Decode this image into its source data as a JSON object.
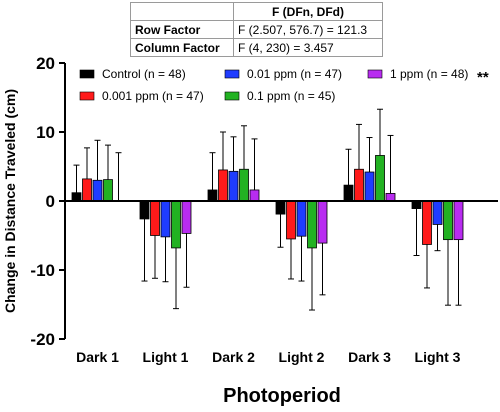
{
  "stats_table": {
    "header": [
      "",
      "F (DFn, DFd)"
    ],
    "rows": [
      {
        "label": "Row Factor",
        "value": "F (2.507, 576.7) = 121.3"
      },
      {
        "label": "Column Factor",
        "value": "F (4, 230) = 3.457"
      }
    ]
  },
  "chart_data": {
    "type": "bar",
    "xlabel": "Photoperiod",
    "ylabel": "Change in Distance Traveled (cm)",
    "ylim": [
      -20,
      20
    ],
    "yticks": [
      -20,
      -10,
      0,
      10,
      20
    ],
    "categories": [
      "Dark 1",
      "Light 1",
      "Dark 2",
      "Light 2",
      "Dark 3",
      "Light 3"
    ],
    "significance": "**",
    "legend_position": "top",
    "series": [
      {
        "name": "Control (n = 48)",
        "color": "#000000",
        "values": [
          1.2,
          -2.6,
          1.6,
          -1.9,
          2.3,
          -1.1
        ],
        "errors": [
          4.0,
          9.0,
          5.4,
          4.8,
          5.2,
          6.8
        ]
      },
      {
        "name": "0.001 ppm (n = 47)",
        "color": "#ff1a1a",
        "values": [
          3.2,
          -5.0,
          4.5,
          -5.5,
          4.6,
          -6.3
        ],
        "errors": [
          4.5,
          6.2,
          5.5,
          5.8,
          6.5,
          6.3
        ]
      },
      {
        "name": "0.01 ppm (n = 47)",
        "color": "#1f3cff",
        "values": [
          3.0,
          -5.2,
          4.3,
          -5.1,
          4.2,
          -3.4
        ],
        "errors": [
          5.8,
          6.5,
          5.0,
          6.5,
          5.0,
          3.8
        ]
      },
      {
        "name": "0.1 ppm (n = 45)",
        "color": "#22b222",
        "values": [
          3.1,
          -6.8,
          4.6,
          -6.8,
          6.6,
          -5.6
        ],
        "errors": [
          5.0,
          8.8,
          6.3,
          9.0,
          6.7,
          9.5
        ]
      },
      {
        "name": "1 ppm (n = 48)",
        "color": "#b82cf0",
        "values": [
          0,
          -4.7,
          1.6,
          -6.1,
          1.1,
          -5.6
        ],
        "errors": [
          7.0,
          7.8,
          7.4,
          7.5,
          8.4,
          9.5
        ]
      }
    ]
  }
}
